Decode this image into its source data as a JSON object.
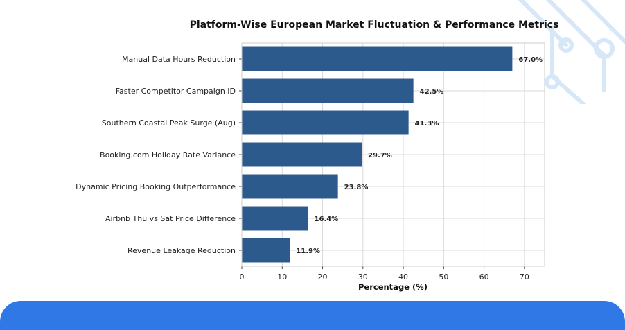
{
  "theme": {
    "bar_color": "#2d5a8c",
    "grid_color": "#d9d9d9",
    "band_color": "#2f78e6",
    "deco_color": "#d6e7f8"
  },
  "chart_data": {
    "type": "bar",
    "orientation": "horizontal",
    "title": "Platform-Wise European Market Fluctuation & Performance Metrics",
    "xlabel": "Percentage (%)",
    "ylabel": "",
    "xlim": [
      0,
      75
    ],
    "xticks": [
      0,
      10,
      20,
      30,
      40,
      50,
      60,
      70
    ],
    "grid": true,
    "categories": [
      "Manual Data Hours Reduction",
      "Faster Competitor Campaign ID",
      "Southern Coastal Peak Surge (Aug)",
      "Booking.com Holiday Rate Variance",
      "Dynamic Pricing Booking Outperformance",
      "Airbnb Thu vs Sat Price Difference",
      "Revenue Leakage Reduction"
    ],
    "values": [
      67.0,
      42.5,
      41.3,
      29.7,
      23.8,
      16.4,
      11.9
    ],
    "value_labels": [
      "67.0%",
      "42.5%",
      "41.3%",
      "29.7%",
      "23.8%",
      "16.4%",
      "11.9%"
    ]
  }
}
